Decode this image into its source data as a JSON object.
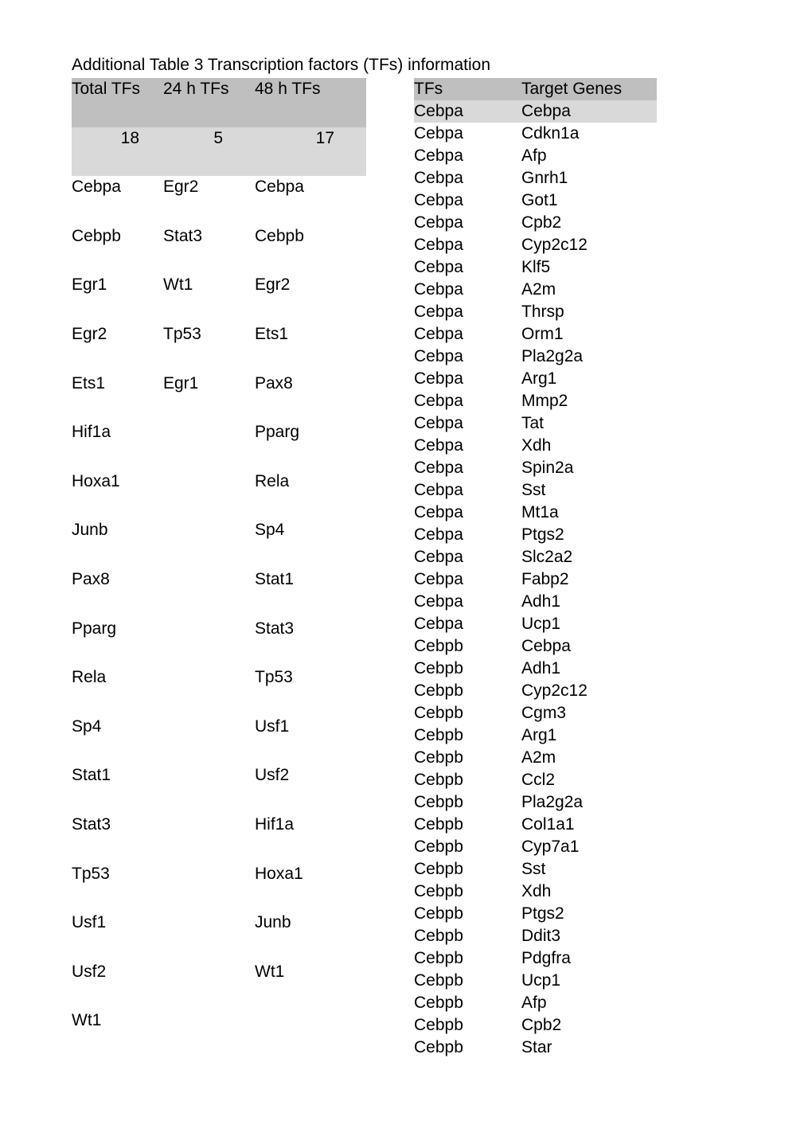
{
  "caption": "Additional Table 3 Transcription factors (TFs) information",
  "header": {
    "total_tfs": "Total TFs",
    "h24": "24 h TFs",
    "h48": "48 h TFs",
    "tfs": "TFs",
    "target_genes": "Target Genes"
  },
  "counts": {
    "total": "18",
    "h24": "5",
    "h48": "17"
  },
  "subheader": {
    "tfs": "Cebpa",
    "target_genes": "Cebpa"
  },
  "left": {
    "total": [
      "Cebpa",
      "Cebpb",
      "Egr1",
      "Egr2",
      "Ets1",
      "Hif1a",
      "Hoxa1",
      "Junb",
      "Pax8",
      "Pparg",
      "Rela",
      "Sp4",
      "Stat1",
      "Stat3",
      "Tp53",
      "Usf1",
      "Usf2",
      "Wt1"
    ],
    "h24": [
      "Egr2",
      "Stat3",
      "Wt1",
      "Tp53",
      "Egr1"
    ],
    "h48": [
      "Cebpa",
      "Cebpb",
      "Egr2",
      "Ets1",
      "Pax8",
      "Pparg",
      "Rela",
      "Sp4",
      "Stat1",
      "Stat3",
      "Tp53",
      "Usf1",
      "Usf2",
      "Hif1a",
      "Hoxa1",
      "Junb",
      "Wt1"
    ]
  },
  "right": [
    {
      "tf": "Cebpa",
      "gene": "Cdkn1a"
    },
    {
      "tf": "Cebpa",
      "gene": "Afp"
    },
    {
      "tf": "Cebpa",
      "gene": "Gnrh1"
    },
    {
      "tf": "Cebpa",
      "gene": "Got1"
    },
    {
      "tf": "Cebpa",
      "gene": "Cpb2"
    },
    {
      "tf": "Cebpa",
      "gene": "Cyp2c12"
    },
    {
      "tf": "Cebpa",
      "gene": "Klf5"
    },
    {
      "tf": "Cebpa",
      "gene": "A2m"
    },
    {
      "tf": "Cebpa",
      "gene": "Thrsp"
    },
    {
      "tf": "Cebpa",
      "gene": "Orm1"
    },
    {
      "tf": "Cebpa",
      "gene": "Pla2g2a"
    },
    {
      "tf": "Cebpa",
      "gene": "Arg1"
    },
    {
      "tf": "Cebpa",
      "gene": "Mmp2"
    },
    {
      "tf": "Cebpa",
      "gene": "Tat"
    },
    {
      "tf": "Cebpa",
      "gene": "Xdh"
    },
    {
      "tf": "Cebpa",
      "gene": "Spin2a"
    },
    {
      "tf": "Cebpa",
      "gene": "Sst"
    },
    {
      "tf": "Cebpa",
      "gene": "Mt1a"
    },
    {
      "tf": "Cebpa",
      "gene": "Ptgs2"
    },
    {
      "tf": "Cebpa",
      "gene": "Slc2a2"
    },
    {
      "tf": "Cebpa",
      "gene": "Fabp2"
    },
    {
      "tf": "Cebpa",
      "gene": "Adh1"
    },
    {
      "tf": "Cebpa",
      "gene": "Ucp1"
    },
    {
      "tf": "Cebpb",
      "gene": "Cebpa"
    },
    {
      "tf": "Cebpb",
      "gene": "Adh1"
    },
    {
      "tf": "Cebpb",
      "gene": "Cyp2c12"
    },
    {
      "tf": "Cebpb",
      "gene": "Cgm3"
    },
    {
      "tf": "Cebpb",
      "gene": "Arg1"
    },
    {
      "tf": "Cebpb",
      "gene": "A2m"
    },
    {
      "tf": "Cebpb",
      "gene": "Ccl2"
    },
    {
      "tf": "Cebpb",
      "gene": "Pla2g2a"
    },
    {
      "tf": "Cebpb",
      "gene": "Col1a1"
    },
    {
      "tf": "Cebpb",
      "gene": "Cyp7a1"
    },
    {
      "tf": "Cebpb",
      "gene": "Sst"
    },
    {
      "tf": "Cebpb",
      "gene": "Xdh"
    },
    {
      "tf": "Cebpb",
      "gene": "Ptgs2"
    },
    {
      "tf": "Cebpb",
      "gene": "Ddit3"
    },
    {
      "tf": "Cebpb",
      "gene": "Pdgfra"
    },
    {
      "tf": "Cebpb",
      "gene": "Ucp1"
    },
    {
      "tf": "Cebpb",
      "gene": "Afp"
    },
    {
      "tf": "Cebpb",
      "gene": "Cpb2"
    },
    {
      "tf": "Cebpb",
      "gene": "Star"
    }
  ],
  "colors": {
    "header_bg": "#bfbfbf",
    "subheader_bg": "#d9d9d9",
    "text": "#000000",
    "background": "#ffffff"
  },
  "font_size_pt": 16
}
